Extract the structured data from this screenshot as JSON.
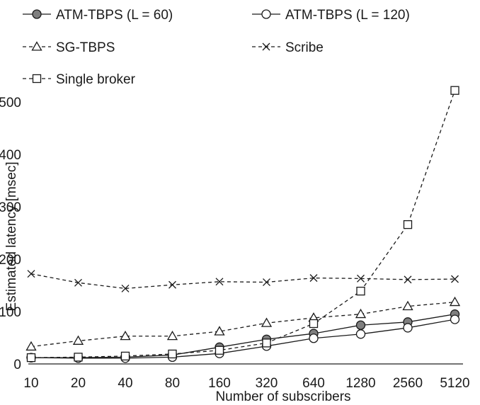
{
  "chart_data": {
    "type": "line",
    "xlabel": "Number of subscribers",
    "ylabel": "Estimated latency [msec]",
    "categories": [
      "10",
      "20",
      "40",
      "80",
      "160",
      "320",
      "640",
      "1280",
      "2560",
      "5120"
    ],
    "ylim": [
      0,
      500
    ],
    "yticks": [
      0,
      100,
      200,
      300,
      400,
      500
    ],
    "grid": false,
    "legend_position": "top",
    "series": [
      {
        "name": "ATM-TBPS (L = 60)",
        "style": "solid",
        "marker": "filled-circle",
        "values": [
          12,
          12,
          13,
          17,
          32,
          47,
          58,
          74,
          80,
          95
        ]
      },
      {
        "name": "ATM-TBPS (L = 120)",
        "style": "solid",
        "marker": "open-circle",
        "values": [
          12,
          11,
          11,
          13,
          20,
          34,
          49,
          57,
          69,
          85
        ]
      },
      {
        "name": "SG-TBPS",
        "style": "dashed",
        "marker": "triangle",
        "values": [
          33,
          44,
          53,
          53,
          62,
          78,
          88,
          95,
          110,
          118
        ]
      },
      {
        "name": "Scribe",
        "style": "dashed",
        "marker": "x",
        "values": [
          172,
          155,
          144,
          151,
          157,
          156,
          164,
          163,
          161,
          162
        ]
      },
      {
        "name": "Single broker",
        "style": "dashed",
        "marker": "square",
        "values": [
          12,
          13,
          15,
          19,
          26,
          40,
          77,
          139,
          266,
          522
        ]
      }
    ]
  }
}
